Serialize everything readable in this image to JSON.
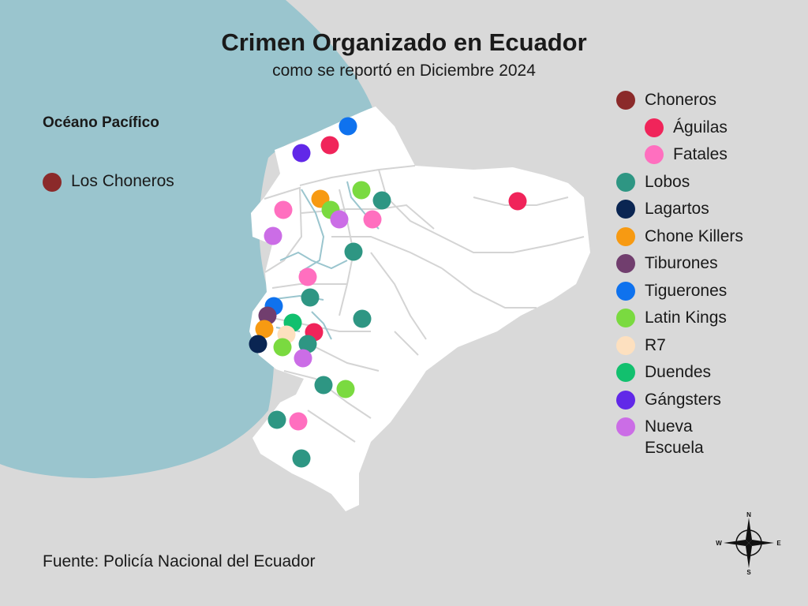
{
  "title": "Crimen Organizado en Ecuador",
  "subtitle": "como se reportó en Diciembre 2024",
  "ocean_label": "Océano Pacífico",
  "left_legend": {
    "label": "Los Choneros",
    "color": "#8b2a2a"
  },
  "legend": [
    {
      "label": "Choneros",
      "color": "#8b2a2a",
      "indent": false
    },
    {
      "label": "Águilas",
      "color": "#f0245a",
      "indent": true
    },
    {
      "label": "Fatales",
      "color": "#ff6fbf",
      "indent": true
    },
    {
      "label": "Lobos",
      "color": "#2e9683",
      "indent": false
    },
    {
      "label": "Lagartos",
      "color": "#0a2552",
      "indent": false
    },
    {
      "label": "Chone Killers",
      "color": "#f79a12",
      "indent": false
    },
    {
      "label": "Tiburones",
      "color": "#713e6e",
      "indent": false
    },
    {
      "label": "Tiguerones",
      "color": "#0f72ee",
      "indent": false
    },
    {
      "label": "Latin Kings",
      "color": "#7ada40",
      "indent": false
    },
    {
      "label": "R7",
      "color": "#fde0bf",
      "indent": false
    },
    {
      "label": "Duendes",
      "color": "#12c06e",
      "indent": false
    },
    {
      "label": "Gángsters",
      "color": "#6128e8",
      "indent": false
    },
    {
      "label": "Nueva Escuela",
      "color": "#cb6de6",
      "indent": false
    }
  ],
  "source": "Fuente: Policía Nacional del Ecuador",
  "compass": {
    "n": "N",
    "s": "S",
    "e": "E",
    "w": "W"
  },
  "map_colors": {
    "ocean": "#9ac5ce",
    "land": "#ffffff",
    "background": "#d9d9d9",
    "borders": "#d4d4d4"
  }
}
